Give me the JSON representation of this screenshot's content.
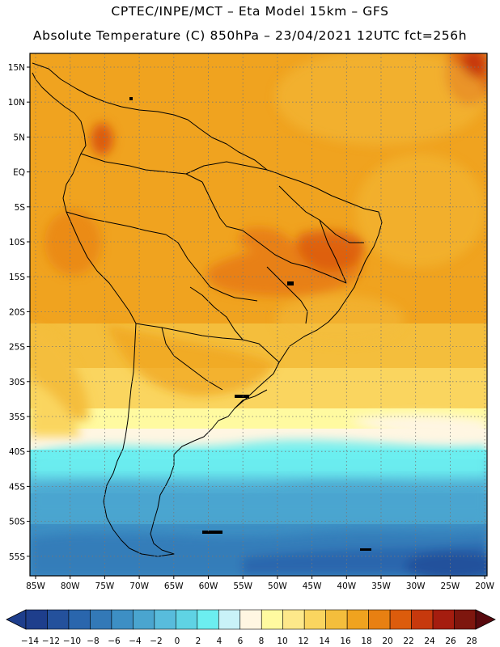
{
  "header": {
    "title_line1": "CPTEC/INPE/MCT –  Eta Model 15km – GFS",
    "title_line2": "Absolute Temperature (C) 850hPa – 23/04/2021 12UTC fct=256h"
  },
  "axes": {
    "lat_labels": [
      "15N",
      "10N",
      "5N",
      "EQ",
      "5S",
      "10S",
      "15S",
      "20S",
      "25S",
      "30S",
      "35S",
      "40S",
      "45S",
      "50S",
      "55S"
    ],
    "lon_labels": [
      "85W",
      "80W",
      "75W",
      "70W",
      "65W",
      "60W",
      "55W",
      "50W",
      "45W",
      "40W",
      "35W",
      "30W",
      "25W",
      "20W"
    ]
  },
  "colorbar": {
    "labels": [
      "-14",
      "-12",
      "-10",
      "-8",
      "-6",
      "-4",
      "-2",
      "0",
      "2",
      "4",
      "6",
      "8",
      "10",
      "12",
      "14",
      "16",
      "18",
      "20",
      "22",
      "24",
      "26",
      "28"
    ],
    "colors": [
      "#1e3e8c",
      "#24519c",
      "#2a66ad",
      "#3379b7",
      "#3d8fc4",
      "#4aa5cf",
      "#58bcdc",
      "#5fd3e4",
      "#6ceef0",
      "#c9f2f8",
      "#fff6e2",
      "#fffaa0",
      "#fde88a",
      "#fad55f",
      "#f4be3c",
      "#f0a31f",
      "#e88012",
      "#dc5c0c",
      "#c7390d",
      "#a51d0f",
      "#7e160e",
      "#58090e"
    ]
  }
}
